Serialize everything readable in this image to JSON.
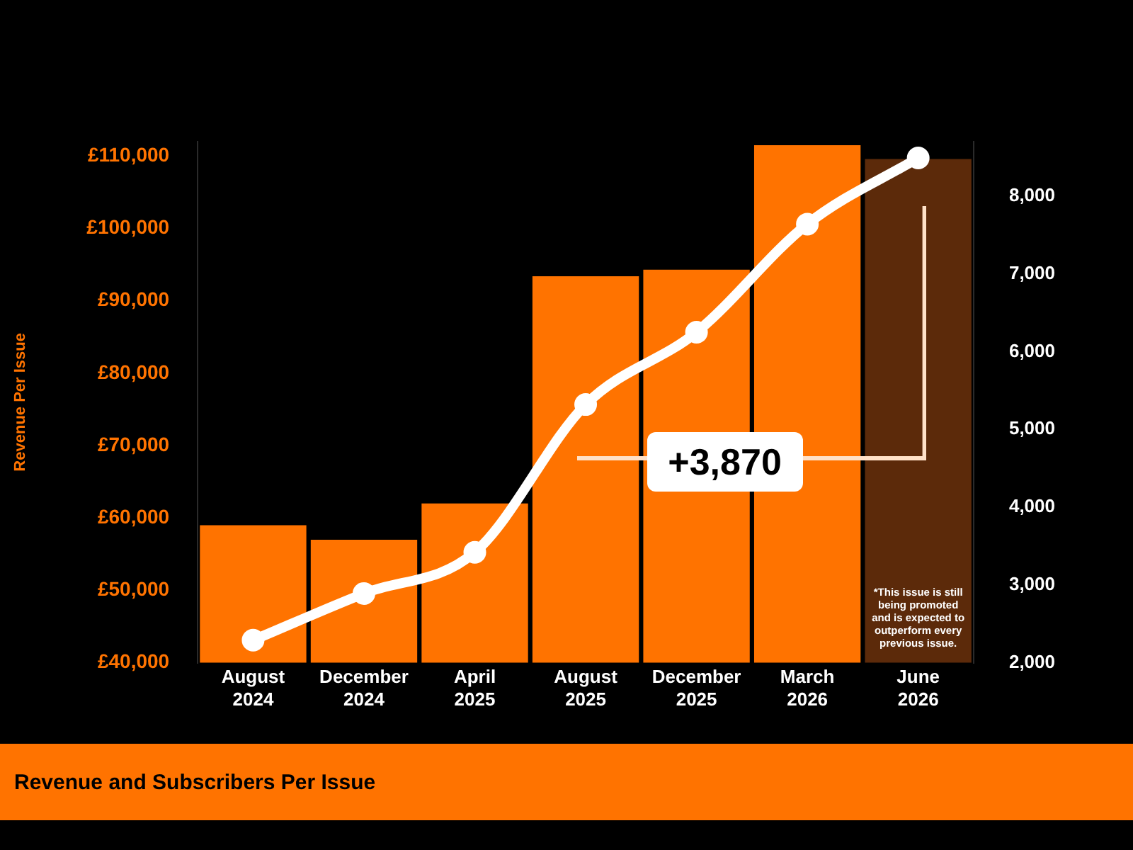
{
  "chart_data": {
    "type": "bar",
    "title": "Revenue and Subscribers Per Issue",
    "ylabel": "Revenue Per Issue",
    "categories": [
      "August 2024",
      "December 2024",
      "April 2025",
      "August 2025",
      "December 2025",
      "March 2026",
      "June 2026"
    ],
    "series": [
      {
        "colors": [
          "#ff7300",
          "#ff7300",
          "#ff7300",
          "#ff7300",
          "#ff7300",
          "#ff7300",
          "#5c2a0a"
        ],
        "values": [
          59000,
          57000,
          62000,
          93400,
          94300,
          111500,
          109600
        ]
      },
      {
        "type": "line",
        "axis": "y2",
        "color": "#ffffff",
        "values": [
          2290,
          2890,
          3420,
          5320,
          6250,
          7640,
          8490
        ]
      }
    ],
    "ylim": [
      40000,
      112000
    ],
    "yticks": [
      {
        "value": 40000,
        "label": "£40,000"
      },
      {
        "value": 50000,
        "label": "£50,000"
      },
      {
        "value": 60000,
        "label": "£60,000"
      },
      {
        "value": 70000,
        "label": "£70,000"
      },
      {
        "value": 80000,
        "label": "£80,000"
      },
      {
        "value": 90000,
        "label": "£90,000"
      },
      {
        "value": 100000,
        "label": "£100,000"
      },
      {
        "value": 110000,
        "label": "£110,000"
      }
    ],
    "y2lim": [
      2000,
      8700
    ],
    "y2ticks": [
      {
        "value": 2000,
        "label": "2,000"
      },
      {
        "value": 3000,
        "label": "3,000"
      },
      {
        "value": 4000,
        "label": "4,000"
      },
      {
        "value": 5000,
        "label": "5,000"
      },
      {
        "value": 6000,
        "label": "6,000"
      },
      {
        "value": 7000,
        "label": "7,000"
      },
      {
        "value": 8000,
        "label": "8,000"
      }
    ],
    "grid": false,
    "legend": false,
    "marker": "circle",
    "line_style": "solid",
    "annotations": [
      "+3,870",
      "*This issue is still being promoted and is expected to outperform every previous issue."
    ]
  }
}
